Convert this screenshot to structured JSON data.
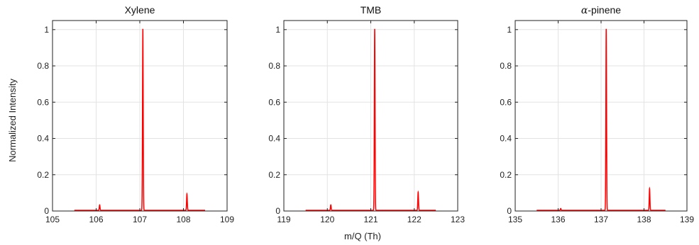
{
  "chart_data": [
    {
      "type": "line",
      "title": "Xylene",
      "title_prefix": "",
      "ylabel": "Normalized Intensity",
      "xlabel": "",
      "xlim": [
        105,
        109
      ],
      "ylim": [
        0,
        1.05
      ],
      "xticks": [
        105,
        106,
        107,
        108,
        109
      ],
      "yticks": [
        0,
        0.2,
        0.4,
        0.6,
        0.8,
        1
      ],
      "ytick_labels": [
        "0",
        "0.2",
        "0.4",
        "0.6",
        "0.8",
        "1"
      ],
      "xrange_data": [
        105.5,
        108.5
      ],
      "peaks": [
        {
          "x": 106.08,
          "y": 0.03
        },
        {
          "x": 107.07,
          "y": 1.0
        },
        {
          "x": 108.08,
          "y": 0.09
        }
      ],
      "grid": true,
      "color": "#ff0000"
    },
    {
      "type": "line",
      "title": "TMB",
      "title_prefix": "",
      "ylabel": "",
      "xlabel": "m/Q (Th)",
      "xlim": [
        119,
        123
      ],
      "ylim": [
        0,
        1.05
      ],
      "xticks": [
        119,
        120,
        121,
        122,
        123
      ],
      "yticks": [
        0,
        0.2,
        0.4,
        0.6,
        0.8,
        1
      ],
      "ytick_labels": [
        "0",
        "0.2",
        "0.4",
        "0.6",
        "0.8",
        "1"
      ],
      "xrange_data": [
        119.5,
        122.5
      ],
      "peaks": [
        {
          "x": 120.08,
          "y": 0.03
        },
        {
          "x": 121.09,
          "y": 1.0
        },
        {
          "x": 122.09,
          "y": 0.1
        }
      ],
      "grid": true,
      "color": "#ff0000"
    },
    {
      "type": "line",
      "title": "-pinene",
      "title_prefix": "α",
      "ylabel": "",
      "xlabel": "",
      "xlim": [
        135,
        139
      ],
      "ylim": [
        0,
        1.05
      ],
      "xticks": [
        135,
        136,
        137,
        138,
        139
      ],
      "yticks": [
        0,
        0.2,
        0.4,
        0.6,
        0.8,
        1
      ],
      "ytick_labels": [
        "0",
        "0.2",
        "0.4",
        "0.6",
        "0.8",
        "1"
      ],
      "xrange_data": [
        135.5,
        138.5
      ],
      "peaks": [
        {
          "x": 136.06,
          "y": 0.01
        },
        {
          "x": 137.12,
          "y": 1.0
        },
        {
          "x": 138.13,
          "y": 0.12
        }
      ],
      "grid": true,
      "color": "#ff0000"
    }
  ]
}
